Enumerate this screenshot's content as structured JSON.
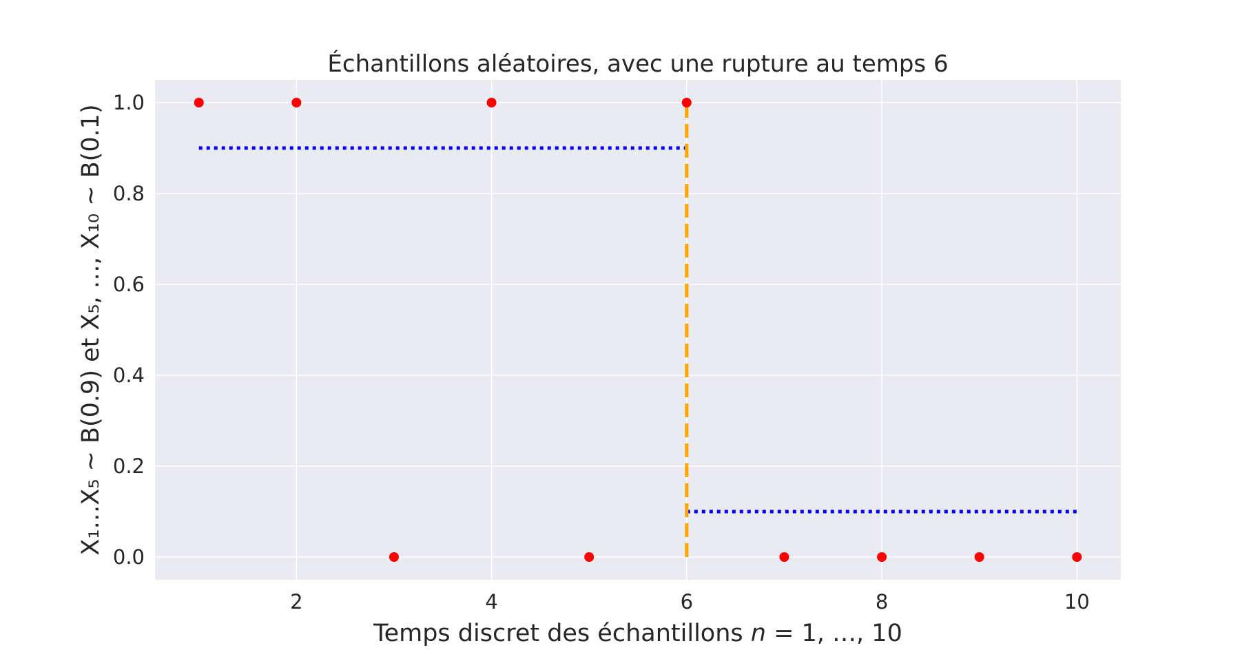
{
  "chart_data": {
    "type": "scatter",
    "title": "Échantillons aléatoires, avec une rupture au temps 6",
    "xlabel": {
      "text": "Temps discret des échantillons ",
      "math": "n",
      "rest": " = 1, …, 10"
    },
    "ylabel": "X₁…X₅ ~ B(0.9) et X₅, …, X₁₀ ~ B(0.1)",
    "xlim": [
      0.55,
      10.45
    ],
    "ylim": [
      -0.05,
      1.05
    ],
    "xticks": [
      2,
      4,
      6,
      8,
      10
    ],
    "yticks": [
      0.0,
      0.2,
      0.4,
      0.6,
      0.8,
      1.0
    ],
    "ytick_labels": [
      "0.0",
      "0.2",
      "0.4",
      "0.6",
      "0.8",
      "1.0"
    ],
    "grid": true,
    "series": [
      {
        "kind": "points",
        "color": "#ff0000",
        "x": [
          1,
          2,
          3,
          4,
          5,
          6,
          7,
          8,
          9,
          10
        ],
        "y": [
          1,
          1,
          0,
          1,
          0,
          1,
          0,
          0,
          0,
          0
        ]
      },
      {
        "kind": "dotted-line",
        "color": "#0000ff",
        "x": [
          1,
          6
        ],
        "y": [
          0.9,
          0.9
        ]
      },
      {
        "kind": "dotted-line",
        "color": "#0000ff",
        "x": [
          6,
          10
        ],
        "y": [
          0.1,
          0.1
        ]
      },
      {
        "kind": "dashed-vline",
        "color": "#ffa500",
        "x": [
          6,
          6
        ],
        "y": [
          0,
          1
        ]
      }
    ],
    "colors": {
      "background": "#eaeaf2",
      "grid": "#ffffff",
      "text": "#262626"
    }
  }
}
